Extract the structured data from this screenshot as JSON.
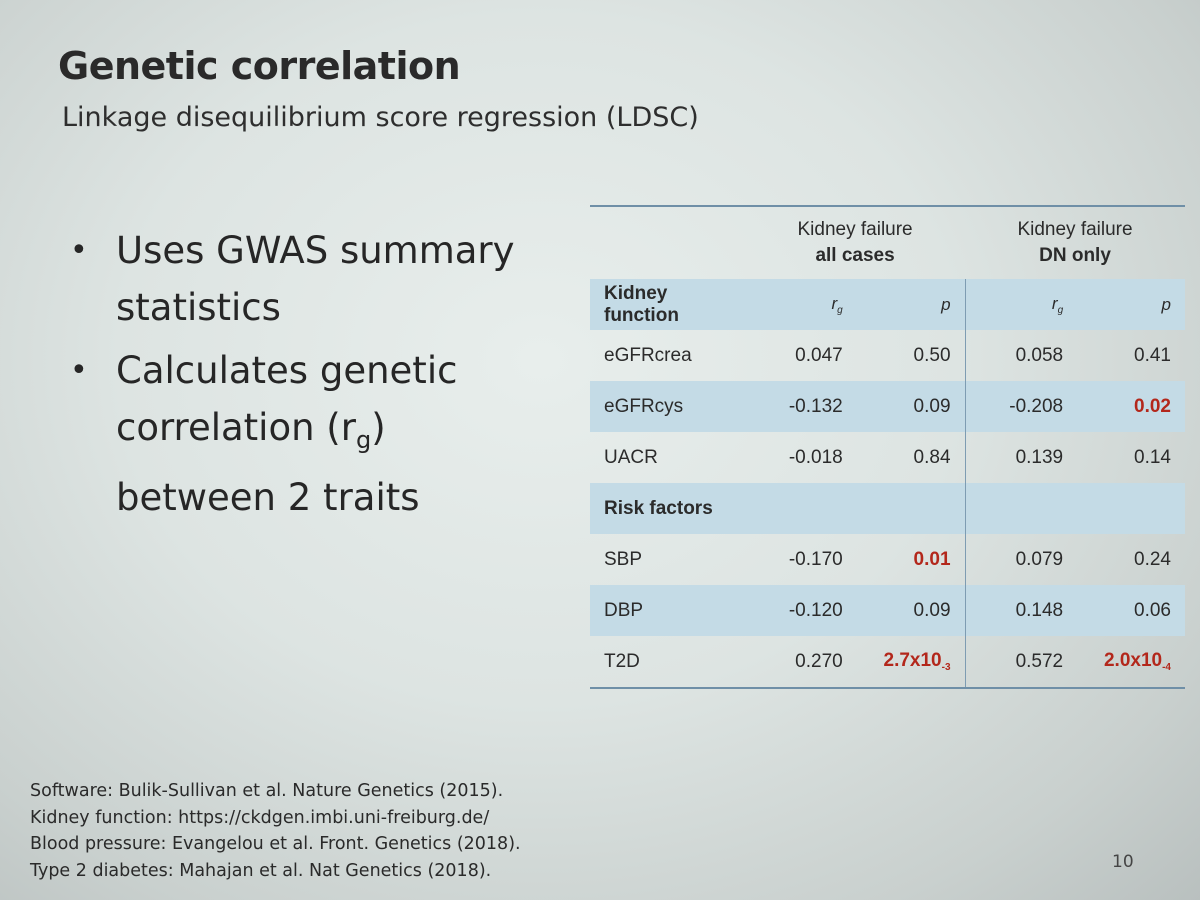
{
  "slide": {
    "title": "Genetic correlation",
    "subtitle": "Linkage disequilibrium score regression (LDSC)",
    "page_number": "10"
  },
  "bullets": [
    {
      "text": "Uses GWAS summary statistics"
    },
    {
      "text_before_sub": "Calculates genetic correlation (r",
      "subscript": "g",
      "text_after_sub": ") between 2 traits"
    }
  ],
  "bullet_marker": "•",
  "table": {
    "group_headers": [
      {
        "line1": "Kidney failure",
        "line2": "all cases"
      },
      {
        "line1": "Kidney failure",
        "line2": "DN only"
      }
    ],
    "col_labels": {
      "rg_main": "r",
      "rg_sub": "g",
      "p": "p"
    },
    "sections": [
      {
        "name": "Kidney function",
        "rows": [
          {
            "label": "eGFRcrea",
            "all_rg": "0.047",
            "all_p": "0.50",
            "dn_rg": "0.058",
            "dn_p": "0.41"
          },
          {
            "label": "eGFRcys",
            "all_rg": "-0.132",
            "all_p": "0.09",
            "dn_rg": "-0.208",
            "dn_p": "0.02"
          },
          {
            "label": "UACR",
            "all_rg": "-0.018",
            "all_p": "0.84",
            "dn_rg": "0.139",
            "dn_p": "0.14"
          }
        ]
      },
      {
        "name": "Risk factors",
        "rows": [
          {
            "label": "SBP",
            "all_rg": "-0.170",
            "all_p": "0.01",
            "dn_rg": "0.079",
            "dn_p": "0.24"
          },
          {
            "label": "DBP",
            "all_rg": "-0.120",
            "all_p": "0.09",
            "dn_rg": "0.148",
            "dn_p": "0.06"
          },
          {
            "label": "T2D",
            "all_rg": "0.270",
            "all_p": "2.7x10",
            "all_p_exp": "-3",
            "dn_rg": "0.572",
            "dn_p": "2.0x10",
            "dn_p_exp": "-4"
          }
        ]
      }
    ],
    "highlight_color": "#b3271b",
    "band_color": "#c4dbe6",
    "rule_color": "#6f8fa7"
  },
  "references": [
    "Software: Bulik-Sullivan et al. Nature Genetics (2015).",
    "Kidney function: https://ckdgen.imbi.uni-freiburg.de/",
    "Blood pressure: Evangelou et al. Front. Genetics (2018).",
    "Type 2 diabetes: Mahajan et al. Nat Genetics (2018)."
  ]
}
